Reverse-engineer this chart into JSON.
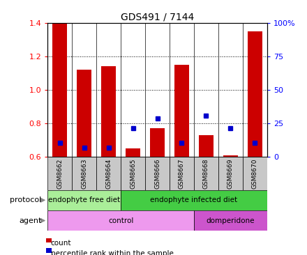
{
  "title": "GDS491 / 7144",
  "samples": [
    "GSM8662",
    "GSM8663",
    "GSM8664",
    "GSM8665",
    "GSM8666",
    "GSM8667",
    "GSM8668",
    "GSM8669",
    "GSM8670"
  ],
  "count_values": [
    1.4,
    1.12,
    1.14,
    0.65,
    0.77,
    1.15,
    0.73,
    0.61,
    1.35
  ],
  "percentile_values": [
    0.685,
    0.655,
    0.655,
    0.77,
    0.83,
    0.685,
    0.845,
    0.77,
    0.685
  ],
  "ylim_left": [
    0.6,
    1.4
  ],
  "ylim_right": [
    0,
    100
  ],
  "yticks_left": [
    0.6,
    0.8,
    1.0,
    1.2,
    1.4
  ],
  "yticks_right": [
    0,
    25,
    50,
    75,
    100
  ],
  "ytick_labels_right": [
    "0",
    "25",
    "50",
    "75",
    "100%"
  ],
  "bar_color": "#cc0000",
  "dot_color": "#0000cc",
  "bar_bottom": 0.6,
  "protocol_groups": [
    {
      "label": "endophyte free diet",
      "start": 0,
      "end": 3,
      "color": "#aaee99"
    },
    {
      "label": "endophyte infected diet",
      "start": 3,
      "end": 9,
      "color": "#44cc44"
    }
  ],
  "agent_groups": [
    {
      "label": "control",
      "start": 0,
      "end": 6,
      "color": "#ee99ee"
    },
    {
      "label": "domperidone",
      "start": 6,
      "end": 9,
      "color": "#cc55cc"
    }
  ],
  "legend_count_label": "count",
  "legend_percentile_label": "percentile rank within the sample",
  "row_label_protocol": "protocol",
  "row_label_agent": "agent",
  "background_color": "#ffffff",
  "plot_bg_color": "#ffffff",
  "sample_box_color": "#c8c8c8",
  "bar_width": 0.6
}
